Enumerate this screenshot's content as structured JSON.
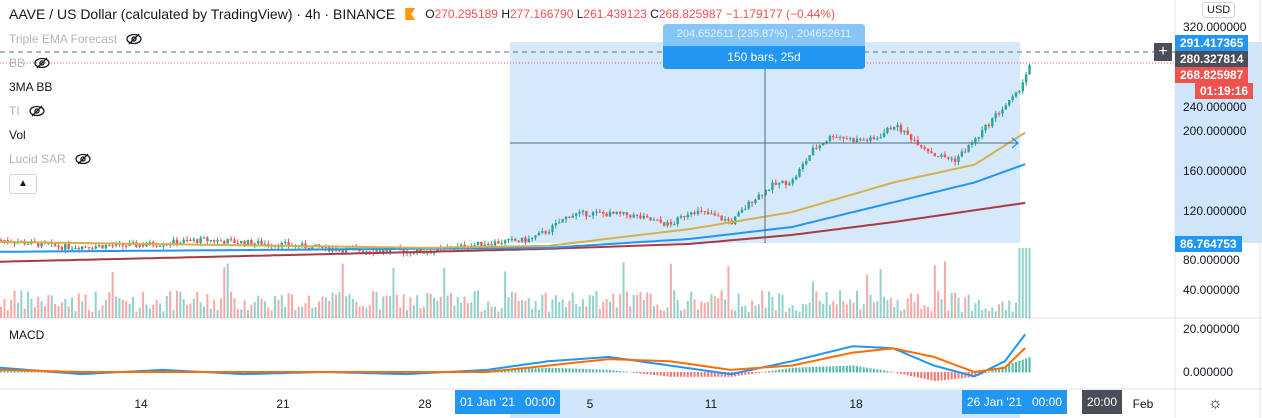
{
  "header": {
    "symbol": "AAVE / US Dollar (calculated by TradingView)",
    "interval": "4h",
    "exchange": "BINANCE",
    "sep": "·",
    "o_label": "O",
    "o": "270.295189",
    "h_label": "H",
    "h": "277.166790",
    "l_label": "L",
    "l": "261.439123",
    "c_label": "C",
    "c": "268.825987",
    "change": "−1.179177 (−0.44%)"
  },
  "indicators": [
    {
      "name": "Triple EMA Forecast",
      "hidden": true
    },
    {
      "name": "BB",
      "hidden": true
    },
    {
      "name": "3MA BB",
      "hidden": false
    },
    {
      "name": "TI",
      "hidden": true
    },
    {
      "name": "Vol",
      "hidden": false
    },
    {
      "name": "Lucid SAR",
      "hidden": true
    }
  ],
  "macd_label": "MACD",
  "measure": {
    "line1": "204.652611 (235.87%) , 204652611",
    "line2": "150 bars, 25d"
  },
  "price_axis": {
    "currency": "USD",
    "labels": [
      "320.000000",
      "240.000000",
      "200.000000",
      "160.000000",
      "120.000000",
      "80.000000",
      "40.000000"
    ],
    "macd_labels": [
      "20.000000",
      "0.000000"
    ],
    "tags": {
      "range_high": "291.417365",
      "crosshair": "280.327814",
      "last": "268.825987",
      "countdown": "01:19:16",
      "range_low": "86.764753"
    }
  },
  "time_axis": {
    "labels": [
      "14",
      "21",
      "28",
      "5",
      "11",
      "18",
      "Feb"
    ],
    "tags": {
      "start": "01 Jan '21   00:00",
      "end": "26 Jan '21   00:00",
      "cross": "20:00"
    }
  },
  "colors": {
    "up": "#26a69a",
    "down": "#ef5350",
    "ma1": "#d4b04c",
    "ma2": "#2196f3",
    "ma3": "#a83a44",
    "accent": "#2196f3",
    "macd": "#2196f3",
    "signal": "#ff6d00"
  },
  "chart_data": {
    "type": "candlestick",
    "x_unit": "day (Dec 7 2020 = 0)",
    "ylim": [
      0,
      330
    ],
    "close": [
      [
        0,
        92
      ],
      [
        3,
        85
      ],
      [
        7,
        87
      ],
      [
        10,
        92
      ],
      [
        14,
        87
      ],
      [
        17,
        82
      ],
      [
        21,
        80
      ],
      [
        24,
        89
      ],
      [
        26,
        92
      ],
      [
        27,
        102
      ],
      [
        28,
        117
      ],
      [
        29,
        119
      ],
      [
        31,
        117
      ],
      [
        32,
        112
      ],
      [
        33,
        107
      ],
      [
        34,
        122
      ],
      [
        35,
        117
      ],
      [
        36,
        110
      ],
      [
        37,
        132
      ],
      [
        38,
        147
      ],
      [
        39,
        152
      ],
      [
        40,
        183
      ],
      [
        41,
        198
      ],
      [
        42,
        193
      ],
      [
        43,
        193
      ],
      [
        44,
        208
      ],
      [
        45,
        193
      ],
      [
        46,
        178
      ],
      [
        47,
        173
      ],
      [
        48,
        193
      ],
      [
        49,
        218
      ],
      [
        50,
        238
      ],
      [
        50.7,
        268
      ]
    ],
    "ma_yellow": [
      [
        0,
        90
      ],
      [
        21,
        84
      ],
      [
        27,
        86
      ],
      [
        34,
        103
      ],
      [
        39,
        120
      ],
      [
        44,
        150
      ],
      [
        48,
        168
      ],
      [
        50.7,
        203
      ]
    ],
    "ma_blue": [
      [
        0,
        80
      ],
      [
        27,
        84
      ],
      [
        34,
        93
      ],
      [
        39,
        105
      ],
      [
        44,
        130
      ],
      [
        48,
        150
      ],
      [
        50.7,
        170
      ]
    ],
    "ma_red": [
      [
        0,
        70
      ],
      [
        21,
        80
      ],
      [
        27,
        83
      ],
      [
        34,
        88
      ],
      [
        39,
        97
      ],
      [
        44,
        110
      ],
      [
        50.7,
        130
      ]
    ],
    "macd": [
      [
        0,
        2
      ],
      [
        4,
        -1
      ],
      [
        8,
        1
      ],
      [
        12,
        -1
      ],
      [
        16,
        0
      ],
      [
        20,
        -1
      ],
      [
        24,
        1
      ],
      [
        27,
        5
      ],
      [
        30,
        7
      ],
      [
        33,
        3
      ],
      [
        36,
        -1
      ],
      [
        39,
        5
      ],
      [
        42,
        12
      ],
      [
        44,
        11
      ],
      [
        46,
        3
      ],
      [
        48,
        -2
      ],
      [
        49.5,
        5
      ],
      [
        50.7,
        20
      ]
    ],
    "signal": [
      [
        0,
        1
      ],
      [
        4,
        0
      ],
      [
        8,
        0
      ],
      [
        12,
        0
      ],
      [
        16,
        0
      ],
      [
        20,
        0
      ],
      [
        24,
        0
      ],
      [
        27,
        3
      ],
      [
        30,
        6
      ],
      [
        33,
        5
      ],
      [
        36,
        1
      ],
      [
        39,
        3
      ],
      [
        42,
        9
      ],
      [
        44,
        11
      ],
      [
        46,
        7
      ],
      [
        48,
        0
      ],
      [
        49.5,
        2
      ],
      [
        50.7,
        13
      ]
    ]
  }
}
